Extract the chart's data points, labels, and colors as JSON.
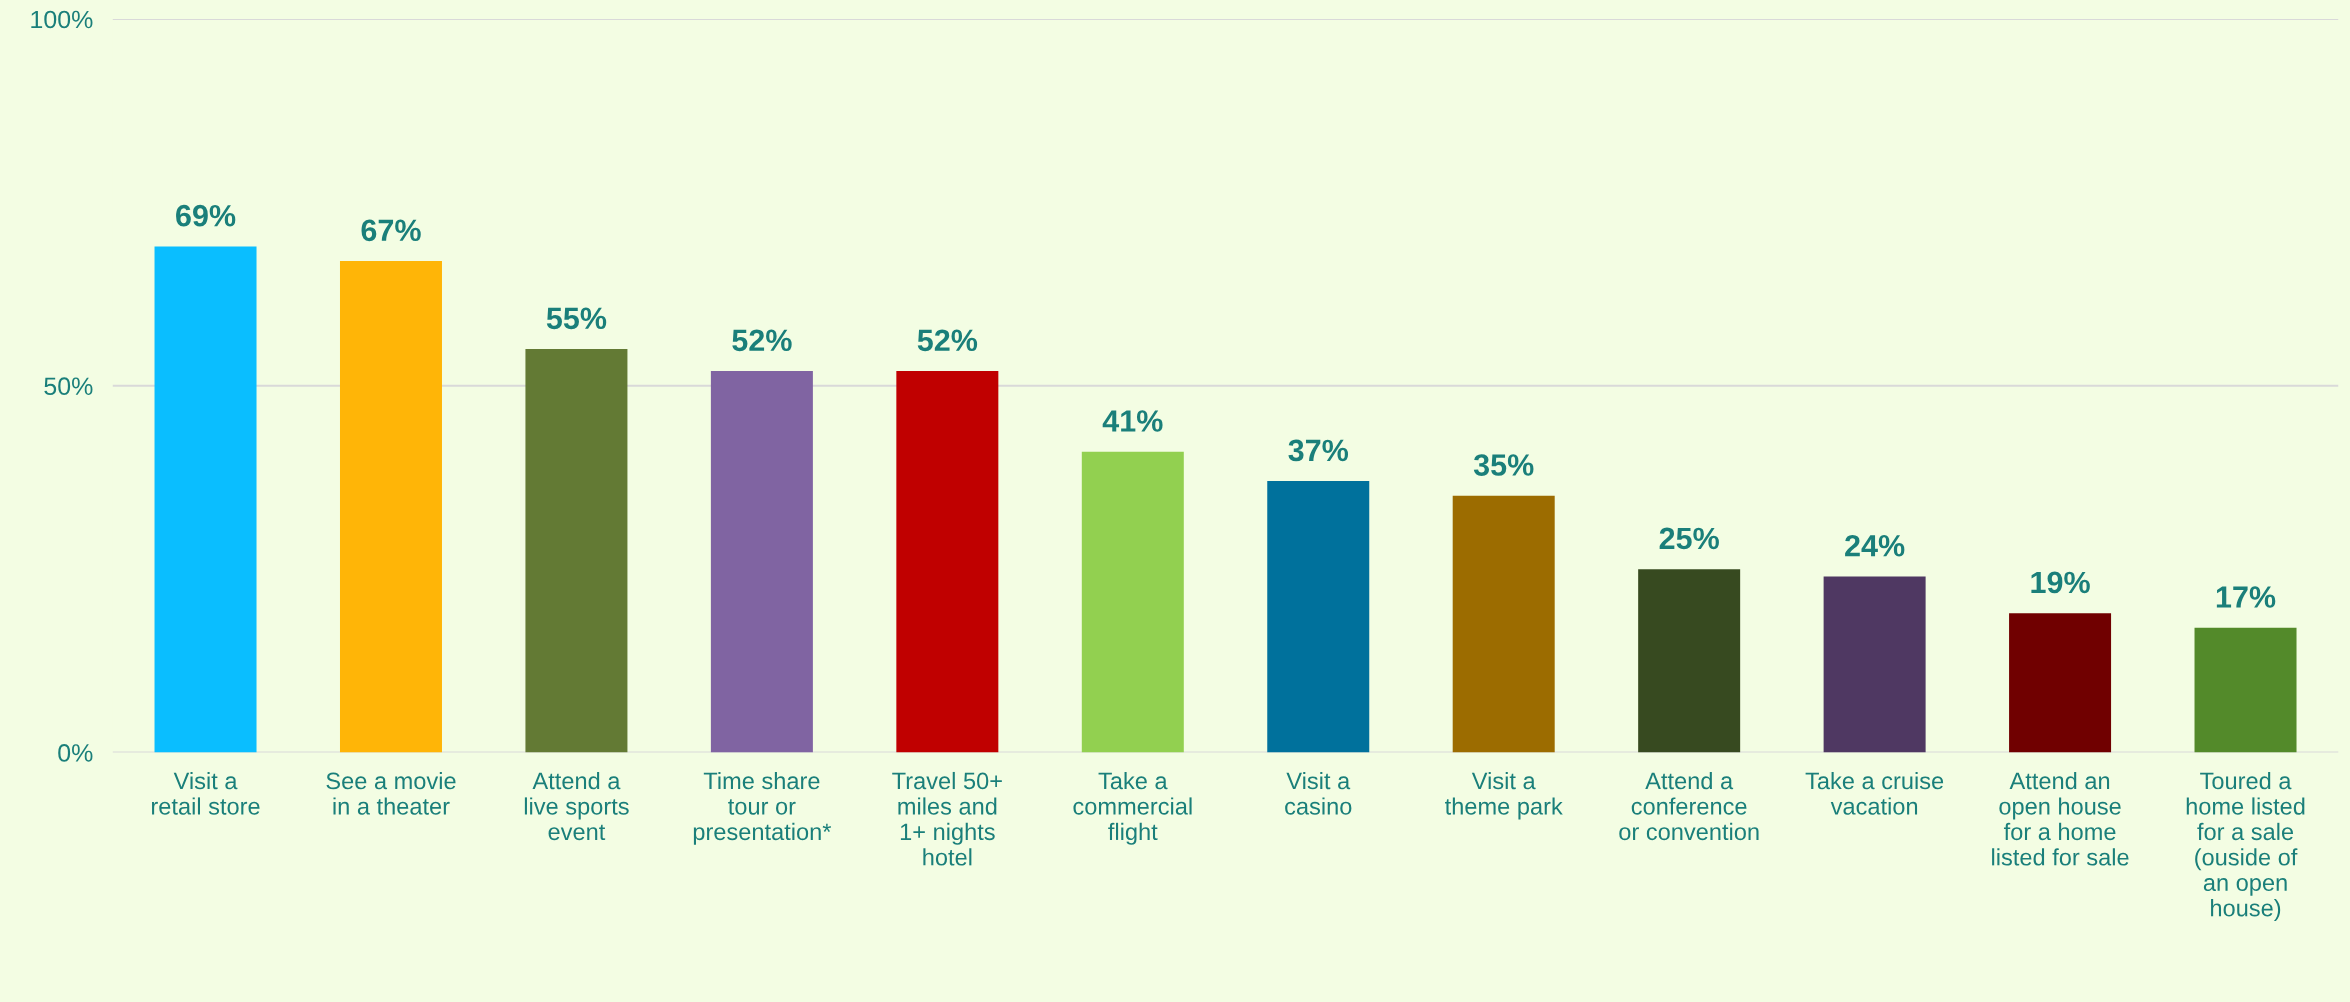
{
  "chart_data": {
    "type": "bar",
    "categories": [
      "Visit a\nretail store",
      "See a movie\nin a theater",
      "Attend a\nlive sports\nevent",
      "Time share\ntour or\npresentation*",
      "Travel 50+\nmiles and\n1+ nights\nhotel",
      "Take a\ncommercial\nflight",
      "Visit a\ncasino",
      "Visit a\ntheme park",
      "Attend a\nconference\nor convention",
      "Take a cruise\nvacation",
      "Attend an\nopen house\nfor a home\nlisted for sale",
      "Toured a\nhome listed\nfor a sale\n(ouside of\nan open\nhouse)"
    ],
    "values": [
      69,
      67,
      55,
      52,
      52,
      41,
      37,
      35,
      25,
      24,
      19,
      17
    ],
    "value_labels": [
      "69%",
      "67%",
      "55%",
      "52%",
      "52%",
      "41%",
      "37%",
      "35%",
      "25%",
      "24%",
      "19%",
      "17%"
    ],
    "colors": [
      "#0abeff",
      "#ffb507",
      "#637a34",
      "#8064a2",
      "#c00000",
      "#92d050",
      "#00719c",
      "#9c6c00",
      "#374a20",
      "#4f3862",
      "#700000",
      "#538a2a"
    ],
    "ylim": [
      0,
      100
    ],
    "yticks": [
      {
        "value": 0,
        "label": "0%"
      },
      {
        "value": 50,
        "label": "50%"
      },
      {
        "value": 100,
        "label": "100%"
      }
    ],
    "grid": "y"
  }
}
